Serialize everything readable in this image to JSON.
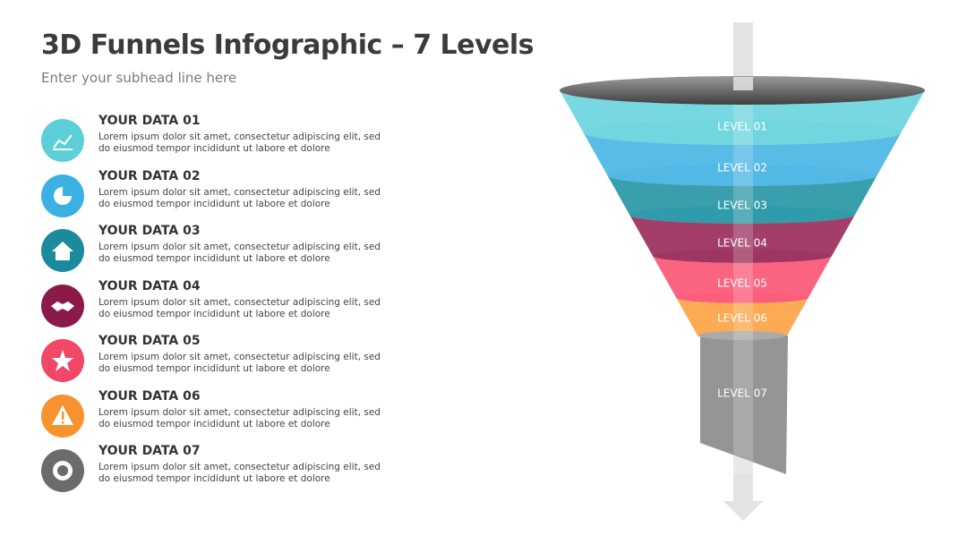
{
  "header": {
    "title": "3D Funnels Infographic – 7 Levels",
    "subtitle": "Enter your subhead line here"
  },
  "items": [
    {
      "title": "YOUR DATA 01",
      "lines": [
        "Lorem ipsum dolor sit amet, consectetur adipiscing elit, sed",
        "do eiusmod tempor incididunt ut labore et dolore"
      ]
    },
    {
      "title": "YOUR DATA 02",
      "lines": [
        "Lorem ipsum dolor sit amet, consectetur adipiscing elit, sed",
        "do eiusmod tempor incididunt ut labore et dolore"
      ]
    },
    {
      "title": "YOUR DATA 03",
      "lines": [
        "Lorem ipsum dolor sit amet, consectetur adipiscing elit, sed",
        "do eiusmod tempor incididunt ut labore et dolore"
      ]
    },
    {
      "title": "YOUR DATA 04",
      "lines": [
        "Lorem ipsum dolor sit amet, consectetur adipiscing elit, sed",
        "do eiusmod tempor incididunt ut labore et dolore"
      ]
    },
    {
      "title": "YOUR DATA 05",
      "lines": [
        "Lorem ipsum dolor sit amet, consectetur adipiscing elit, sed",
        "do eiusmod tempor incididunt ut labore et dolore"
      ]
    },
    {
      "title": "YOUR DATA 06",
      "lines": [
        "Lorem ipsum dolor sit amet, consectetur adipiscing elit, sed",
        "do eiusmod tempor incididunt ut labore et dolore"
      ]
    },
    {
      "title": "YOUR DATA 07",
      "lines": [
        "Lorem ipsum dolor sit amet, consectetur adipiscing elit, sed",
        "do eiusmod tempor incididunt ut labore et dolore"
      ]
    }
  ],
  "levels": [
    "LEVEL 01",
    "LEVEL 02",
    "LEVEL 03",
    "LEVEL 04",
    "LEVEL 05",
    "LEVEL 06",
    "LEVEL 07"
  ]
}
